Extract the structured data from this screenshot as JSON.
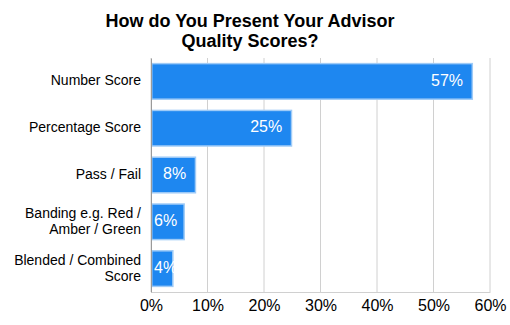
{
  "chart_data": {
    "type": "bar",
    "orientation": "horizontal",
    "title": "How do You Present Your Advisor Quality Scores?",
    "categories": [
      "Number Score",
      "Percentage Score",
      "Pass / Fail",
      "Banding e.g. Red / Amber / Green",
      "Blended / Combined Score"
    ],
    "values": [
      57,
      25,
      8,
      6,
      4
    ],
    "value_labels": [
      "57%",
      "25%",
      "8%",
      "6%",
      "4%"
    ],
    "data_labels": true,
    "color": "#1e87f0",
    "xlim": [
      0,
      60
    ],
    "xticks": [
      {
        "value": 0,
        "label": "0%"
      },
      {
        "value": 10,
        "label": "10%"
      },
      {
        "value": 20,
        "label": "20%"
      },
      {
        "value": 30,
        "label": "30%"
      },
      {
        "value": 40,
        "label": "40%"
      },
      {
        "value": 50,
        "label": "50%"
      },
      {
        "value": 60,
        "label": "60%"
      }
    ],
    "grid": true
  }
}
